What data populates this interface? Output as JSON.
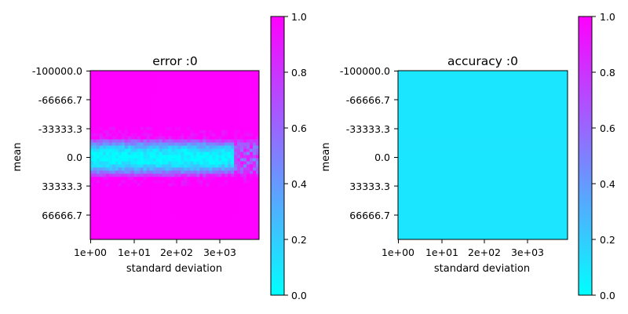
{
  "chart_data": [
    {
      "type": "heatmap",
      "title": "error :0",
      "xlabel": "standard deviation",
      "ylabel": "mean",
      "x_ticks": [
        "1e+00",
        "1e+01",
        "2e+02",
        "3e+03"
      ],
      "y_ticks": [
        "-100000.0",
        "-66666.7",
        "-33333.3",
        "0.0",
        "33333.3",
        "66666.7"
      ],
      "colorbar": {
        "min": 0.0,
        "max": 1.0,
        "ticks": [
          "0.0",
          "0.2",
          "0.4",
          "0.6",
          "0.8",
          "1.0"
        ],
        "colormap": "cool"
      },
      "grid": {
        "columns": 54,
        "rows": 54
      },
      "value_pattern": "near 0 in a horizontal band around mean 0 (band about ±33333 wide at low standard deviation, narrowing and fading at the highest standard deviations); 1.0 everywhere else"
    },
    {
      "type": "heatmap",
      "title": "accuracy :0",
      "xlabel": "standard deviation",
      "ylabel": "mean",
      "x_ticks": [
        "1e+00",
        "1e+01",
        "2e+02",
        "3e+03"
      ],
      "y_ticks": [
        "-100000.0",
        "-66666.7",
        "-33333.3",
        "0.0",
        "33333.3",
        "66666.7"
      ],
      "colorbar": {
        "min": 0.0,
        "max": 1.0,
        "ticks": [
          "0.0",
          "0.2",
          "0.4",
          "0.6",
          "0.8",
          "1.0"
        ],
        "colormap": "cool"
      },
      "grid": {
        "columns": 54,
        "rows": 54
      },
      "value_pattern": "uniform, approximately 0.1 across the whole grid"
    }
  ]
}
